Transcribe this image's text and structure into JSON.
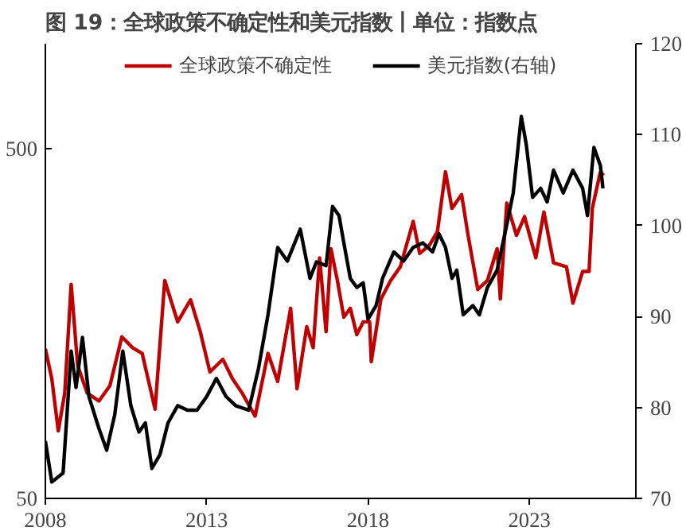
{
  "chart_data": {
    "type": "line",
    "title": "图 19：全球政策不确定性和美元指数丨单位：指数点",
    "log": "y",
    "xlim": [
      2008,
      2026.3
    ],
    "xticks": [
      2008,
      2013,
      2018,
      2023
    ],
    "ylim": [
      50,
      1000
    ],
    "yticks": [
      50,
      500
    ],
    "y2lim": [
      70,
      120
    ],
    "y2ticks": [
      70,
      80,
      90,
      100,
      110,
      120
    ],
    "legend": "top",
    "grid": false,
    "line_style": "solid",
    "marker": "none",
    "series": [
      {
        "name": "全球政策不确定性",
        "color": "#c00000",
        "x": [
          2008.0,
          2008.2,
          2008.4,
          2008.6,
          2008.8,
          2009.0,
          2009.3,
          2009.66,
          2010.0,
          2010.37,
          2010.7,
          2011.0,
          2011.4,
          2011.7,
          2012.1,
          2012.5,
          2012.8,
          2013.1,
          2013.5,
          2013.8,
          2014.1,
          2014.5,
          2014.9,
          2015.2,
          2015.6,
          2015.8,
          2016.1,
          2016.3,
          2016.5,
          2016.7,
          2016.85,
          2017.05,
          2017.25,
          2017.45,
          2017.65,
          2017.85,
          2018.05,
          2018.1,
          2018.4,
          2018.7,
          2019.0,
          2019.4,
          2019.6,
          2019.9,
          2020.15,
          2020.4,
          2020.6,
          2020.9,
          2021.1,
          2021.4,
          2021.7,
          2022.0,
          2022.1,
          2022.3,
          2022.6,
          2022.85,
          2023.2,
          2023.45,
          2023.75,
          2024.15,
          2024.35,
          2024.65,
          2024.85,
          2024.95,
          2025.2,
          2025.3
        ],
        "values": [
          134,
          110,
          78,
          100,
          205,
          120,
          100,
          95,
          105,
          145,
          135,
          130,
          90,
          210,
          160,
          185,
          150,
          115,
          125,
          110,
          100,
          86,
          130,
          108,
          175,
          103,
          155,
          135,
          244,
          150,
          259,
          210,
          165,
          175,
          147,
          160,
          160,
          123,
          186,
          210,
          230,
          310,
          251,
          265,
          290,
          430,
          338,
          370,
          283,
          198,
          210,
          259,
          186,
          350,
          283,
          320,
          244,
          330,
          236,
          230,
          181,
          223,
          223,
          338,
          430,
          420
        ]
      },
      {
        "name": "美元指数(右轴)",
        "color": "#000000",
        "axis": "y2",
        "x": [
          2008.0,
          2008.2,
          2008.55,
          2008.8,
          2008.95,
          2009.15,
          2009.35,
          2009.65,
          2009.9,
          2010.15,
          2010.4,
          2010.65,
          2010.9,
          2011.1,
          2011.3,
          2011.55,
          2011.8,
          2012.1,
          2012.4,
          2012.7,
          2013.0,
          2013.3,
          2013.6,
          2013.9,
          2014.3,
          2014.6,
          2014.9,
          2015.2,
          2015.5,
          2015.9,
          2016.2,
          2016.4,
          2016.7,
          2016.9,
          2017.1,
          2017.25,
          2017.45,
          2017.65,
          2017.85,
          2018.0,
          2018.25,
          2018.45,
          2018.8,
          2019.1,
          2019.4,
          2019.7,
          2020.0,
          2020.2,
          2020.4,
          2020.6,
          2020.75,
          2020.95,
          2021.25,
          2021.45,
          2021.7,
          2022.0,
          2022.3,
          2022.5,
          2022.75,
          2022.9,
          2023.1,
          2023.35,
          2023.55,
          2023.75,
          2024.05,
          2024.35,
          2024.65,
          2024.8,
          2025.0,
          2025.2,
          2025.28
        ],
        "values": [
          76.3,
          71.8,
          72.8,
          86.2,
          82.2,
          87.7,
          81.2,
          77.8,
          75.3,
          79.2,
          86.2,
          80.2,
          77.3,
          78.3,
          73.3,
          74.8,
          78.3,
          80.2,
          79.7,
          79.7,
          81.2,
          83.2,
          81.2,
          80.2,
          79.7,
          84.2,
          90.2,
          97.6,
          96.1,
          99.6,
          94.2,
          96.0,
          95.6,
          102.1,
          101.1,
          98.1,
          94.2,
          93.2,
          93.7,
          89.7,
          91.2,
          94.2,
          97.1,
          96.1,
          97.6,
          98.1,
          97.1,
          99.1,
          97.6,
          94.2,
          95.1,
          90.2,
          91.2,
          90.2,
          93.2,
          95.1,
          100.1,
          103.6,
          112.0,
          109.0,
          103.1,
          104.1,
          102.6,
          106.1,
          103.6,
          106.1,
          104.1,
          101.1,
          108.6,
          106.6,
          104.1
        ]
      }
    ]
  }
}
